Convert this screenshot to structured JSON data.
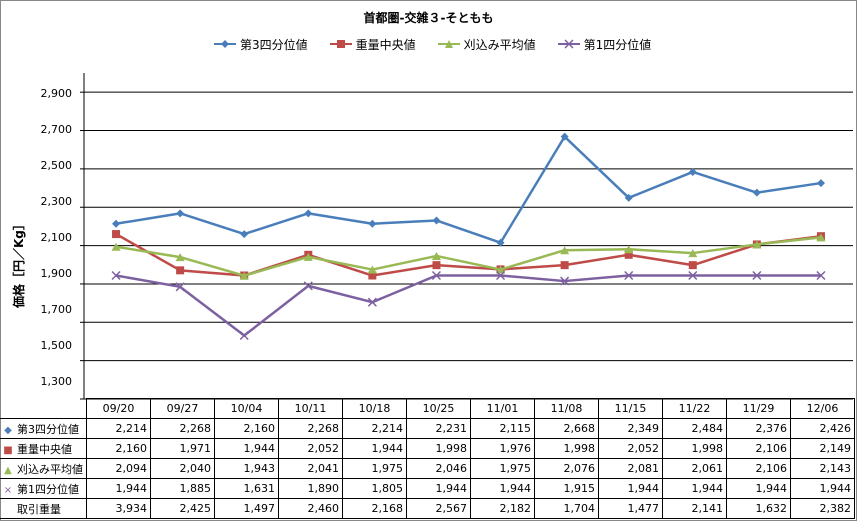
{
  "chart_data": {
    "type": "line",
    "title": "首都圏-交雑３-そともも",
    "ylabel": "価格［円／Kg］",
    "ylim": [
      1300,
      3000
    ],
    "yticks": [
      1300,
      1500,
      1700,
      1900,
      2100,
      2300,
      2500,
      2700,
      2900
    ],
    "ytick_labels": [
      "1,300",
      "1,500",
      "1,700",
      "1,900",
      "2,100",
      "2,300",
      "2,500",
      "2,700",
      "2,900"
    ],
    "grid": "horizontal",
    "legend_position": "top",
    "categories": [
      "09/20",
      "09/27",
      "10/04",
      "10/11",
      "10/18",
      "10/25",
      "11/01",
      "11/08",
      "11/15",
      "11/22",
      "11/29",
      "12/06"
    ],
    "series": [
      {
        "name": "第3四分位値",
        "marker": "diamond",
        "color": "#4A7EBB",
        "values": [
          2214,
          2268,
          2160,
          2268,
          2214,
          2231,
          2115,
          2668,
          2349,
          2484,
          2376,
          2426
        ],
        "labels": [
          "2,214",
          "2,268",
          "2,160",
          "2,268",
          "2,214",
          "2,231",
          "2,115",
          "2,668",
          "2,349",
          "2,484",
          "2,376",
          "2,426"
        ]
      },
      {
        "name": "重量中央値",
        "marker": "square",
        "color": "#BE4B48",
        "values": [
          2160,
          1971,
          1944,
          2052,
          1944,
          1998,
          1976,
          1998,
          2052,
          1998,
          2106,
          2149
        ],
        "labels": [
          "2,160",
          "1,971",
          "1,944",
          "2,052",
          "1,944",
          "1,998",
          "1,976",
          "1,998",
          "2,052",
          "1,998",
          "2,106",
          "2,149"
        ]
      },
      {
        "name": "刈込み平均値",
        "marker": "triangle",
        "color": "#98B954",
        "values": [
          2094,
          2040,
          1943,
          2041,
          1975,
          2046,
          1975,
          2076,
          2081,
          2061,
          2106,
          2143
        ],
        "labels": [
          "2,094",
          "2,040",
          "1,943",
          "2,041",
          "1,975",
          "2,046",
          "1,975",
          "2,076",
          "2,081",
          "2,061",
          "2,106",
          "2,143"
        ]
      },
      {
        "name": "第1四分位値",
        "marker": "x",
        "color": "#7D60A0",
        "values": [
          1944,
          1885,
          1631,
          1890,
          1805,
          1944,
          1944,
          1915,
          1944,
          1944,
          1944,
          1944
        ],
        "labels": [
          "1,944",
          "1,885",
          "1,631",
          "1,890",
          "1,805",
          "1,944",
          "1,944",
          "1,915",
          "1,944",
          "1,944",
          "1,944",
          "1,944"
        ]
      }
    ],
    "extra_rows": [
      {
        "name": "取引重量",
        "labels": [
          "3,934",
          "2,425",
          "1,497",
          "2,460",
          "2,168",
          "2,567",
          "2,182",
          "1,704",
          "1,477",
          "2,141",
          "1,632",
          "2,382"
        ]
      }
    ]
  }
}
